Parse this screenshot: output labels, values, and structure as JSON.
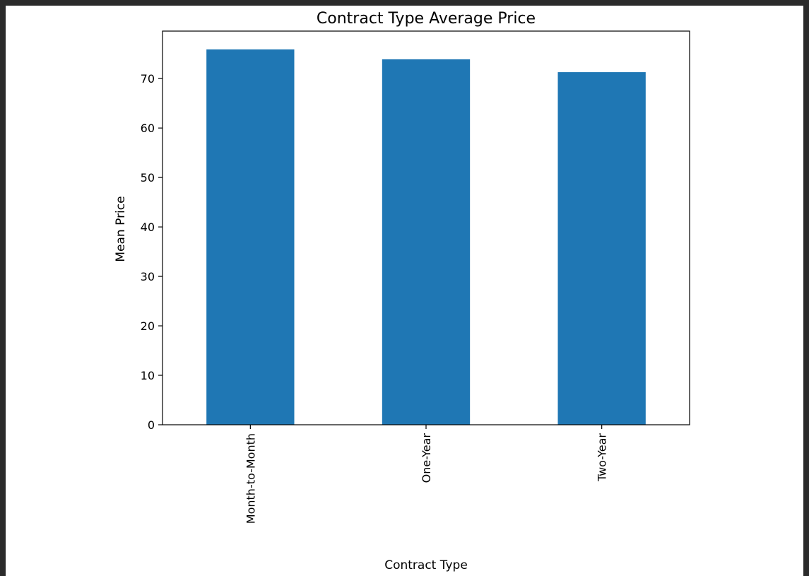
{
  "chart_data": {
    "type": "bar",
    "title": "Contract Type Average Price",
    "xlabel": "Contract Type",
    "ylabel": "Mean Price",
    "categories": [
      "Month-to-Month",
      "One-Year",
      "Two-Year"
    ],
    "values": [
      75.9,
      73.9,
      71.3
    ],
    "ylim": [
      0,
      79.6
    ],
    "yticks": [
      0,
      10,
      20,
      30,
      40,
      50,
      60,
      70
    ],
    "ytick_labels": [
      "0",
      "10",
      "20",
      "30",
      "40",
      "50",
      "60",
      "70"
    ],
    "bar_color": "#1f77b4",
    "grid": false,
    "legend": "none"
  }
}
